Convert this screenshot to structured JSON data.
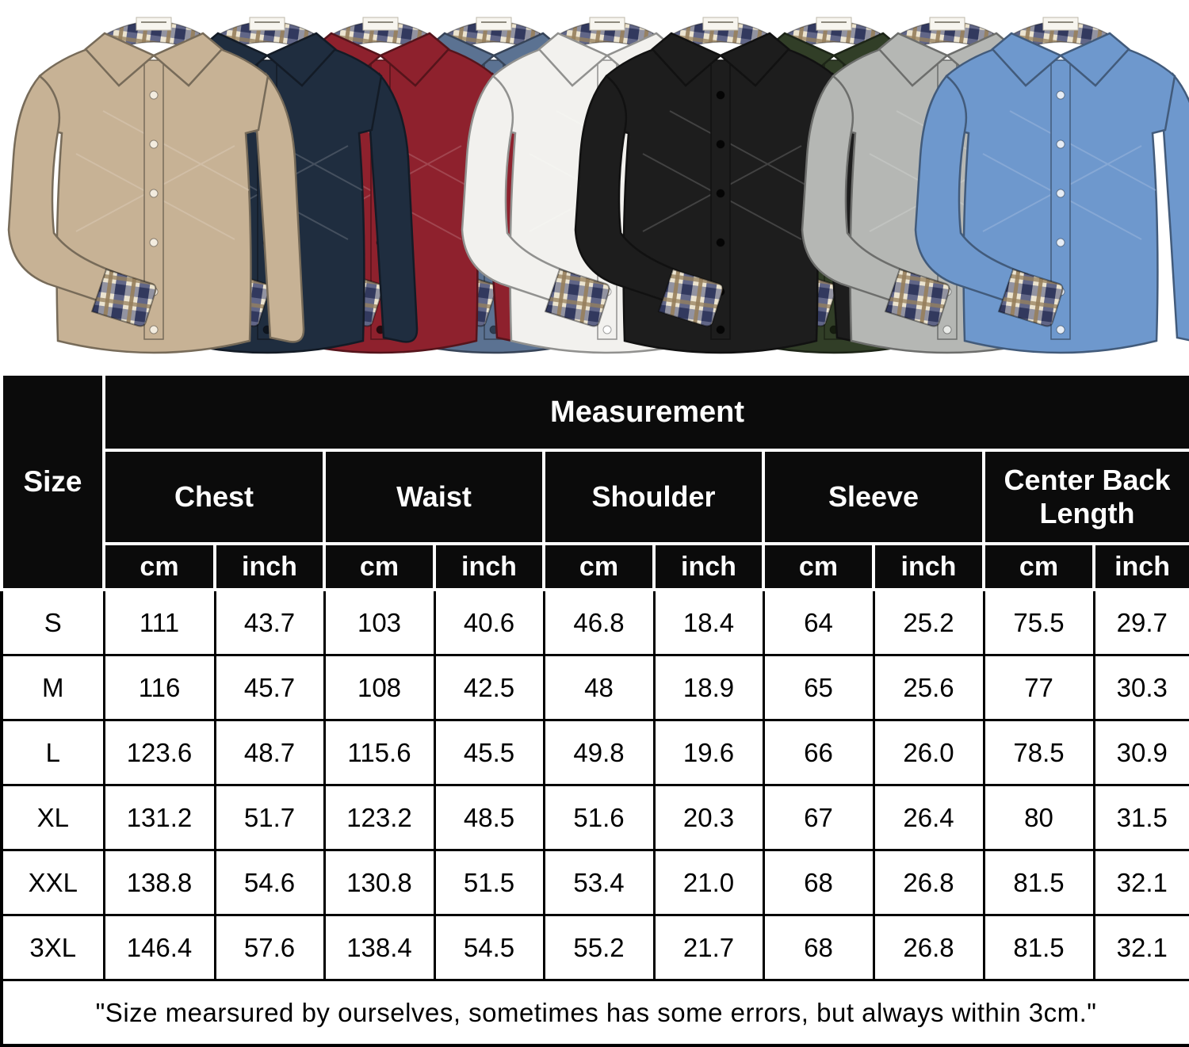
{
  "gallery": {
    "shirts": [
      {
        "label": "khaki",
        "color": "#c7b295",
        "button": "#f3ecdf"
      },
      {
        "label": "navy",
        "color": "#1f2d3f",
        "button": "#0e151f"
      },
      {
        "label": "wine-red",
        "color": "#8e212d",
        "button": "#270a0f"
      },
      {
        "label": "slate-blue",
        "color": "#5b7292",
        "button": "#2e3c50"
      },
      {
        "label": "white",
        "color": "#f2f1ee",
        "button": "#ffffff"
      },
      {
        "label": "black",
        "color": "#1d1d1d",
        "button": "#050505"
      },
      {
        "label": "army-green",
        "color": "#313e27",
        "button": "#151c0f"
      },
      {
        "label": "light-gray",
        "color": "#b5b7b4",
        "button": "#e9ebe8"
      },
      {
        "label": "light-blue",
        "color": "#6e98cd",
        "button": "#e6edf6"
      }
    ],
    "plaid": {
      "base": "#ece4d0",
      "navy": "#49507a",
      "brown": "#97805c",
      "cross": "#32395e"
    }
  },
  "size_chart": {
    "measurement_header": "Measurement",
    "size_header": "Size",
    "groups": [
      "Chest",
      "Waist",
      "Shoulder",
      "Sleeve",
      "Center Back Length"
    ],
    "units": [
      "cm",
      "inch",
      "cm",
      "inch",
      "cm",
      "inch",
      "cm",
      "inch",
      "cm",
      "inch"
    ],
    "rows": [
      {
        "size": "S",
        "values": [
          "111",
          "43.7",
          "103",
          "40.6",
          "46.8",
          "18.4",
          "64",
          "25.2",
          "75.5",
          "29.7"
        ]
      },
      {
        "size": "M",
        "values": [
          "116",
          "45.7",
          "108",
          "42.5",
          "48",
          "18.9",
          "65",
          "25.6",
          "77",
          "30.3"
        ]
      },
      {
        "size": "L",
        "values": [
          "123.6",
          "48.7",
          "115.6",
          "45.5",
          "49.8",
          "19.6",
          "66",
          "26.0",
          "78.5",
          "30.9"
        ]
      },
      {
        "size": "XL",
        "values": [
          "131.2",
          "51.7",
          "123.2",
          "48.5",
          "51.6",
          "20.3",
          "67",
          "26.4",
          "80",
          "31.5"
        ]
      },
      {
        "size": "XXL",
        "values": [
          "138.8",
          "54.6",
          "130.8",
          "51.5",
          "53.4",
          "21.0",
          "68",
          "26.8",
          "81.5",
          "32.1"
        ]
      },
      {
        "size": "3XL",
        "values": [
          "146.4",
          "57.6",
          "138.4",
          "54.5",
          "55.2",
          "21.7",
          "68",
          "26.8",
          "81.5",
          "32.1"
        ]
      }
    ],
    "note": "\"Size mearsured by ourselves, sometimes has some errors, but always within 3cm.\""
  },
  "chart_data": {
    "type": "table",
    "title": "Measurement",
    "columns": [
      "Size",
      "Chest cm",
      "Chest inch",
      "Waist cm",
      "Waist inch",
      "Shoulder cm",
      "Shoulder inch",
      "Sleeve cm",
      "Sleeve inch",
      "Center Back Length cm",
      "Center Back Length inch"
    ],
    "rows": [
      [
        "S",
        111,
        43.7,
        103,
        40.6,
        46.8,
        18.4,
        64,
        25.2,
        75.5,
        29.7
      ],
      [
        "M",
        116,
        45.7,
        108,
        42.5,
        48,
        18.9,
        65,
        25.6,
        77,
        30.3
      ],
      [
        "L",
        123.6,
        48.7,
        115.6,
        45.5,
        49.8,
        19.6,
        66,
        26.0,
        78.5,
        30.9
      ],
      [
        "XL",
        131.2,
        51.7,
        123.2,
        48.5,
        51.6,
        20.3,
        67,
        26.4,
        80,
        31.5
      ],
      [
        "XXL",
        138.8,
        54.6,
        130.8,
        51.5,
        53.4,
        21.0,
        68,
        26.8,
        81.5,
        32.1
      ],
      [
        "3XL",
        146.4,
        57.6,
        138.4,
        54.5,
        55.2,
        21.7,
        68,
        26.8,
        81.5,
        32.1
      ]
    ],
    "note": "\"Size mearsured by ourselves, sometimes has some errors, but always within 3cm.\""
  }
}
